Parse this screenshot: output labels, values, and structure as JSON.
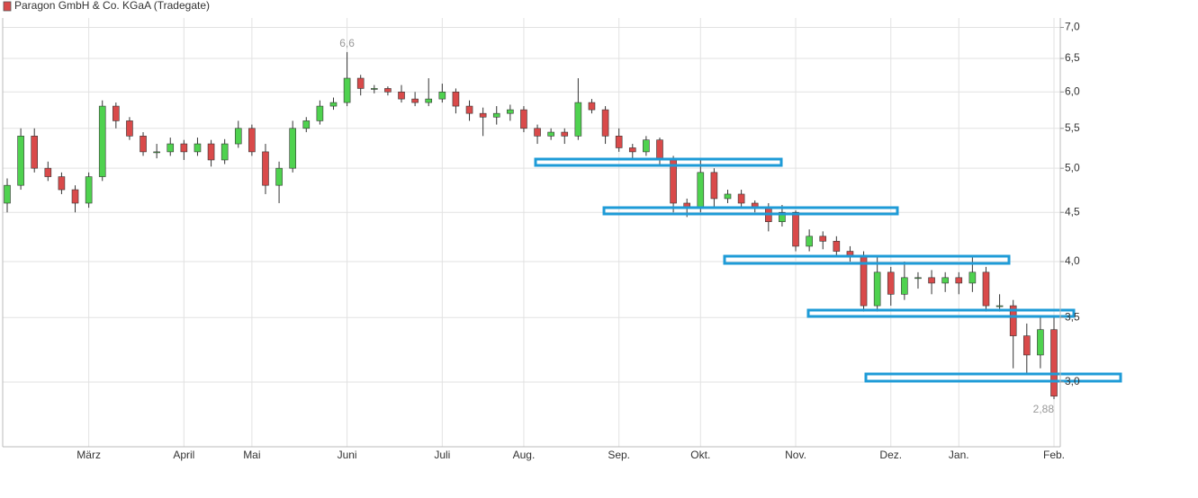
{
  "chart_data": {
    "type": "candlestick",
    "log_scale": true,
    "grid": true,
    "ylim": [
      2.57,
      7.16
    ],
    "yticks": [
      {
        "value": 3,
        "label": "3,0"
      },
      {
        "value": 3.5,
        "label": "3,5"
      },
      {
        "value": 4,
        "label": "4,0"
      },
      {
        "value": 4.5,
        "label": "4,5"
      },
      {
        "value": 5,
        "label": "5,0"
      },
      {
        "value": 5.5,
        "label": "5,5"
      },
      {
        "value": 6,
        "label": "6,0"
      },
      {
        "value": 6.5,
        "label": "6,5"
      },
      {
        "value": 7,
        "label": "7,0"
      }
    ],
    "categories": [
      null,
      null,
      null,
      null,
      null,
      null,
      "März",
      null,
      null,
      null,
      null,
      null,
      null,
      "April",
      null,
      null,
      null,
      null,
      "Mai",
      null,
      null,
      null,
      null,
      null,
      null,
      "Juni",
      null,
      null,
      null,
      null,
      null,
      null,
      "Juli",
      null,
      null,
      null,
      null,
      null,
      "Aug.",
      null,
      null,
      null,
      null,
      null,
      null,
      "Sep.",
      null,
      null,
      null,
      null,
      null,
      "Okt.",
      null,
      null,
      null,
      null,
      null,
      null,
      "Nov.",
      null,
      null,
      null,
      null,
      null,
      null,
      "Dez.",
      null,
      null,
      null,
      null,
      "Jan.",
      null,
      null,
      null,
      null,
      null,
      null,
      "Feb."
    ],
    "series": [
      {
        "name": "Paragon GmbH & Co. KGaA (Tradegate)",
        "color": "#d94a4a",
        "up_color": "#4fd24f",
        "down_color": "#d94a4a",
        "open": [
          4.6,
          4.8,
          5.4,
          5.0,
          4.9,
          4.75,
          4.6,
          4.9,
          5.8,
          5.6,
          5.4,
          5.2,
          5.2,
          5.3,
          5.2,
          5.3,
          5.1,
          5.3,
          5.5,
          5.2,
          4.8,
          5.0,
          5.5,
          5.6,
          5.8,
          5.85,
          6.2,
          6.05,
          6.05,
          6.0,
          5.9,
          5.85,
          5.9,
          6.0,
          5.8,
          5.7,
          5.65,
          5.7,
          5.75,
          5.5,
          5.4,
          5.45,
          5.4,
          5.85,
          5.75,
          5.4,
          5.25,
          5.2,
          5.35,
          5.1,
          4.6,
          4.55,
          4.95,
          4.65,
          4.7,
          4.6,
          4.55,
          4.4,
          4.5,
          4.15,
          4.25,
          4.2,
          4.1,
          4.05,
          3.6,
          3.9,
          3.7,
          3.85,
          3.85,
          3.8,
          3.85,
          3.8,
          3.9,
          3.6,
          3.6,
          3.35,
          3.2,
          3.4
        ],
        "high": [
          4.88,
          5.5,
          5.5,
          5.08,
          4.95,
          4.8,
          4.95,
          5.88,
          5.85,
          5.65,
          5.45,
          5.3,
          5.38,
          5.35,
          5.38,
          5.35,
          5.36,
          5.6,
          5.55,
          5.3,
          5.08,
          5.6,
          5.65,
          5.88,
          5.92,
          6.6,
          6.25,
          6.1,
          6.08,
          6.1,
          6.0,
          6.2,
          6.12,
          6.05,
          5.88,
          5.78,
          5.8,
          5.82,
          5.8,
          5.55,
          5.5,
          5.5,
          6.2,
          5.9,
          5.8,
          5.5,
          5.3,
          5.4,
          5.38,
          5.15,
          4.65,
          5.12,
          5.0,
          4.75,
          4.75,
          4.63,
          4.6,
          4.58,
          4.52,
          4.32,
          4.3,
          4.25,
          4.15,
          4.1,
          4.05,
          3.95,
          4.0,
          3.9,
          3.92,
          3.9,
          3.9,
          4.05,
          3.95,
          3.7,
          3.65,
          3.45,
          3.5,
          3.5
        ],
        "low": [
          4.5,
          4.75,
          4.95,
          4.85,
          4.7,
          4.5,
          4.55,
          4.85,
          5.5,
          5.35,
          5.15,
          5.12,
          5.15,
          5.1,
          5.15,
          5.02,
          5.05,
          5.25,
          5.15,
          4.7,
          4.6,
          4.95,
          5.45,
          5.55,
          5.75,
          5.8,
          5.95,
          5.98,
          5.95,
          5.85,
          5.8,
          5.8,
          5.85,
          5.7,
          5.6,
          5.4,
          5.55,
          5.6,
          5.45,
          5.3,
          5.35,
          5.3,
          5.35,
          5.7,
          5.3,
          5.2,
          5.1,
          5.15,
          5.05,
          4.5,
          4.45,
          4.5,
          4.55,
          4.6,
          4.55,
          4.5,
          4.3,
          4.35,
          4.1,
          4.1,
          4.12,
          4.05,
          4.0,
          3.55,
          3.55,
          3.6,
          3.65,
          3.75,
          3.7,
          3.72,
          3.7,
          3.72,
          3.55,
          3.55,
          3.1,
          3.05,
          3.1,
          2.88
        ],
        "close": [
          4.8,
          5.4,
          5.0,
          4.9,
          4.75,
          4.6,
          4.9,
          5.8,
          5.6,
          5.4,
          5.2,
          5.2,
          5.3,
          5.2,
          5.3,
          5.1,
          5.3,
          5.5,
          5.2,
          4.8,
          5.0,
          5.5,
          5.6,
          5.8,
          5.85,
          6.2,
          6.05,
          6.05,
          6.0,
          5.9,
          5.85,
          5.9,
          6.0,
          5.8,
          5.7,
          5.65,
          5.7,
          5.75,
          5.5,
          5.4,
          5.45,
          5.4,
          5.85,
          5.75,
          5.4,
          5.25,
          5.2,
          5.35,
          5.1,
          4.6,
          4.55,
          4.95,
          4.65,
          4.7,
          4.6,
          4.55,
          4.4,
          4.5,
          4.15,
          4.25,
          4.2,
          4.1,
          4.05,
          3.6,
          3.9,
          3.7,
          3.85,
          3.85,
          3.8,
          3.85,
          3.8,
          3.9,
          3.6,
          3.6,
          3.35,
          3.2,
          3.4,
          2.9
        ]
      }
    ],
    "annotations": [
      {
        "label": "6,6",
        "value": 6.6
      },
      {
        "label": "2,88",
        "value": 2.88
      }
    ]
  }
}
